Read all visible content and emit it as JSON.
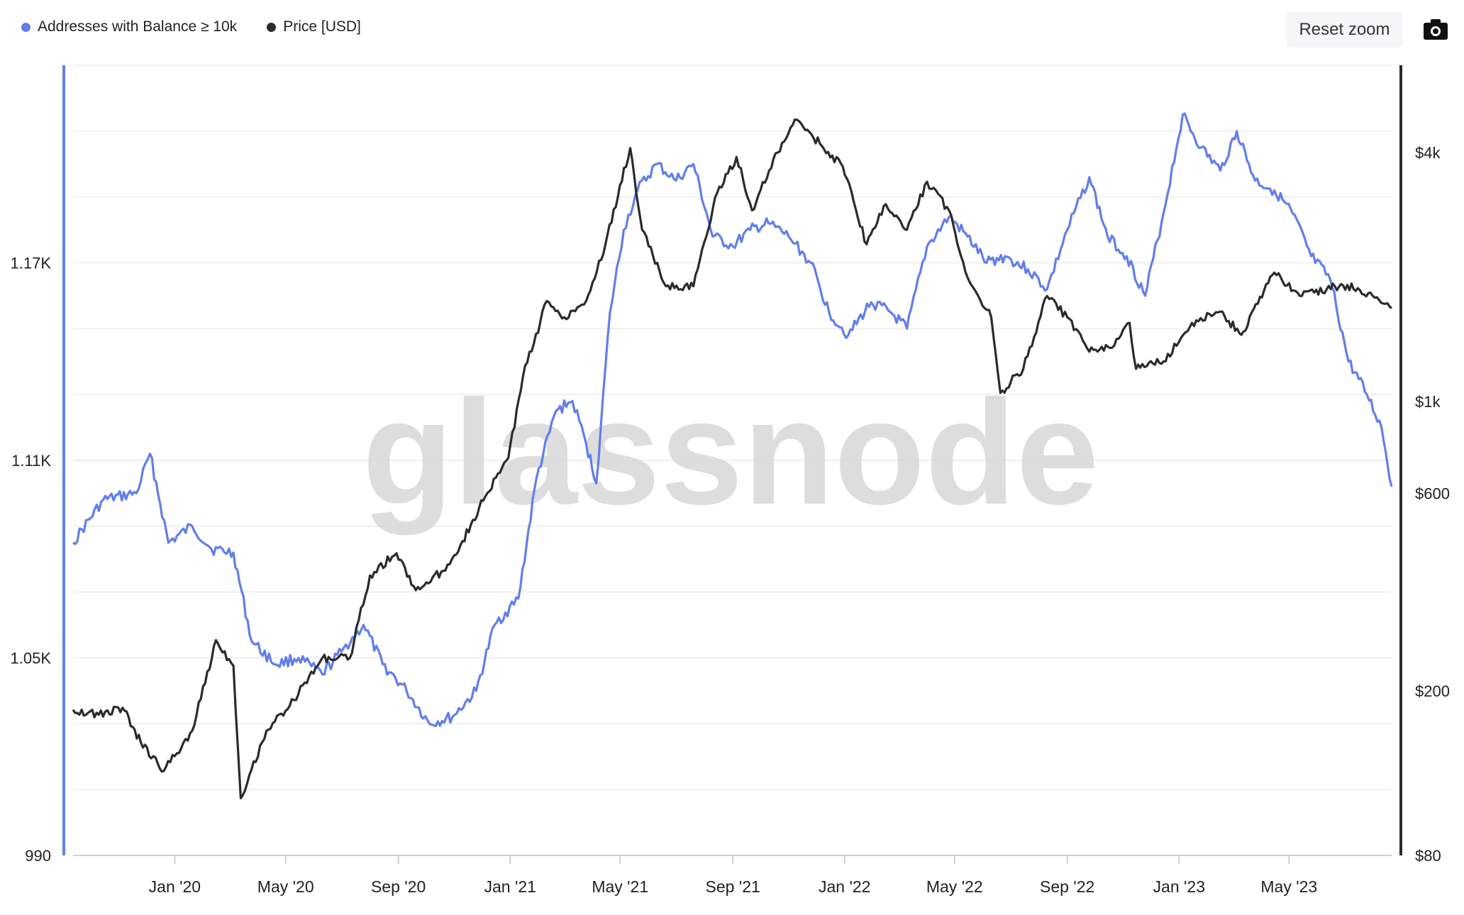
{
  "toolbar": {
    "reset_zoom_label": "Reset zoom",
    "camera_icon": "camera-icon"
  },
  "legend": [
    {
      "label": "Addresses with Balance ≥ 10k",
      "color": "#627eea"
    },
    {
      "label": "Price [USD]",
      "color": "#2b2b2b"
    }
  ],
  "watermark": "glassnode",
  "chart_data": {
    "type": "line",
    "x_ticks": [
      "Jan '20",
      "May '20",
      "Sep '20",
      "Jan '21",
      "May '21",
      "Sep '21",
      "Jan '22",
      "May '22",
      "Sep '22",
      "Jan '23",
      "May '23"
    ],
    "x_tick_dates": [
      "2020-01-01",
      "2020-05-01",
      "2020-09-01",
      "2021-01-01",
      "2021-05-01",
      "2021-09-01",
      "2022-01-01",
      "2022-05-01",
      "2022-09-01",
      "2023-01-01",
      "2023-05-01"
    ],
    "x_range": [
      "2019-09-12",
      "2023-08-21"
    ],
    "y_left": {
      "ticks": [
        "990",
        "1.05K",
        "1.11K",
        "1.17K"
      ],
      "range": [
        990,
        1230
      ]
    },
    "y_right": {
      "ticks": [
        "$80",
        "$200",
        "$600",
        "$1k",
        "$4k"
      ],
      "scale": "log",
      "range": [
        80,
        6500
      ]
    },
    "grid": true,
    "legend_position": "top-left",
    "series": [
      {
        "name": "Addresses with Balance ≥ 10k",
        "axis": "left",
        "color": "#627eea",
        "points": [
          [
            "2019-09-12",
            1085
          ],
          [
            "2019-10-15",
            1098
          ],
          [
            "2019-11-20",
            1100
          ],
          [
            "2019-12-05",
            1112
          ],
          [
            "2019-12-25",
            1085
          ],
          [
            "2020-01-20",
            1090
          ],
          [
            "2020-02-10",
            1083
          ],
          [
            "2020-03-05",
            1082
          ],
          [
            "2020-03-25",
            1055
          ],
          [
            "2020-04-20",
            1048
          ],
          [
            "2020-05-15",
            1050
          ],
          [
            "2020-06-10",
            1045
          ],
          [
            "2020-07-01",
            1052
          ],
          [
            "2020-07-25",
            1060
          ],
          [
            "2020-08-15",
            1048
          ],
          [
            "2020-09-10",
            1040
          ],
          [
            "2020-10-05",
            1030
          ],
          [
            "2020-10-30",
            1032
          ],
          [
            "2020-11-25",
            1040
          ],
          [
            "2020-12-15",
            1060
          ],
          [
            "2021-01-10",
            1068
          ],
          [
            "2021-01-30",
            1105
          ],
          [
            "2021-02-20",
            1125
          ],
          [
            "2021-03-10",
            1128
          ],
          [
            "2021-03-25",
            1115
          ],
          [
            "2021-04-05",
            1103
          ],
          [
            "2021-04-20",
            1155
          ],
          [
            "2021-05-05",
            1180
          ],
          [
            "2021-05-20",
            1192
          ],
          [
            "2021-06-10",
            1200
          ],
          [
            "2021-07-01",
            1195
          ],
          [
            "2021-07-20",
            1200
          ],
          [
            "2021-08-10",
            1178
          ],
          [
            "2021-09-01",
            1175
          ],
          [
            "2021-09-20",
            1180
          ],
          [
            "2021-10-10",
            1182
          ],
          [
            "2021-11-01",
            1178
          ],
          [
            "2021-11-25",
            1170
          ],
          [
            "2021-12-15",
            1155
          ],
          [
            "2022-01-05",
            1148
          ],
          [
            "2022-01-30",
            1158
          ],
          [
            "2022-02-20",
            1155
          ],
          [
            "2022-03-10",
            1150
          ],
          [
            "2022-04-01",
            1175
          ],
          [
            "2022-04-25",
            1184
          ],
          [
            "2022-05-15",
            1178
          ],
          [
            "2022-06-05",
            1170
          ],
          [
            "2022-06-25",
            1172
          ],
          [
            "2022-07-20",
            1168
          ],
          [
            "2022-08-10",
            1162
          ],
          [
            "2022-09-01",
            1180
          ],
          [
            "2022-09-25",
            1196
          ],
          [
            "2022-10-15",
            1178
          ],
          [
            "2022-11-05",
            1172
          ],
          [
            "2022-11-25",
            1160
          ],
          [
            "2022-12-15",
            1185
          ],
          [
            "2023-01-05",
            1215
          ],
          [
            "2023-01-25",
            1205
          ],
          [
            "2023-02-15",
            1198
          ],
          [
            "2023-03-05",
            1210
          ],
          [
            "2023-03-25",
            1195
          ],
          [
            "2023-04-15",
            1192
          ],
          [
            "2023-05-05",
            1185
          ],
          [
            "2023-05-25",
            1172
          ],
          [
            "2023-06-15",
            1165
          ],
          [
            "2023-07-05",
            1140
          ],
          [
            "2023-07-25",
            1130
          ],
          [
            "2023-08-10",
            1120
          ],
          [
            "2023-08-21",
            1102
          ]
        ]
      },
      {
        "name": "Price [USD]",
        "axis": "right",
        "color": "#2b2b2b",
        "points": [
          [
            "2019-09-12",
            180
          ],
          [
            "2019-10-10",
            175
          ],
          [
            "2019-11-05",
            182
          ],
          [
            "2019-11-25",
            150
          ],
          [
            "2019-12-20",
            128
          ],
          [
            "2020-01-20",
            160
          ],
          [
            "2020-02-15",
            265
          ],
          [
            "2020-03-05",
            230
          ],
          [
            "2020-03-13",
            110
          ],
          [
            "2020-04-10",
            160
          ],
          [
            "2020-05-10",
            190
          ],
          [
            "2020-06-10",
            240
          ],
          [
            "2020-07-10",
            240
          ],
          [
            "2020-08-01",
            380
          ],
          [
            "2020-08-30",
            430
          ],
          [
            "2020-09-20",
            350
          ],
          [
            "2020-10-20",
            390
          ],
          [
            "2020-11-10",
            460
          ],
          [
            "2020-12-05",
            590
          ],
          [
            "2020-12-30",
            730
          ],
          [
            "2021-01-15",
            1150
          ],
          [
            "2021-02-10",
            1750
          ],
          [
            "2021-03-01",
            1600
          ],
          [
            "2021-03-25",
            1750
          ],
          [
            "2021-04-15",
            2400
          ],
          [
            "2021-05-12",
            4100
          ],
          [
            "2021-05-25",
            2600
          ],
          [
            "2021-06-20",
            1900
          ],
          [
            "2021-07-20",
            1900
          ],
          [
            "2021-08-15",
            3200
          ],
          [
            "2021-09-05",
            3900
          ],
          [
            "2021-09-22",
            2900
          ],
          [
            "2021-10-20",
            4000
          ],
          [
            "2021-11-10",
            4800
          ],
          [
            "2021-12-05",
            4200
          ],
          [
            "2021-12-30",
            3700
          ],
          [
            "2022-01-25",
            2400
          ],
          [
            "2022-02-15",
            3000
          ],
          [
            "2022-03-10",
            2600
          ],
          [
            "2022-04-01",
            3400
          ],
          [
            "2022-04-25",
            2900
          ],
          [
            "2022-05-15",
            2000
          ],
          [
            "2022-06-10",
            1600
          ],
          [
            "2022-06-20",
            1050
          ],
          [
            "2022-07-15",
            1200
          ],
          [
            "2022-08-10",
            1800
          ],
          [
            "2022-09-01",
            1600
          ],
          [
            "2022-09-25",
            1320
          ],
          [
            "2022-10-20",
            1350
          ],
          [
            "2022-11-08",
            1550
          ],
          [
            "2022-11-15",
            1200
          ],
          [
            "2022-12-15",
            1250
          ],
          [
            "2023-01-15",
            1550
          ],
          [
            "2023-02-15",
            1650
          ],
          [
            "2023-03-10",
            1450
          ],
          [
            "2023-04-15",
            2050
          ],
          [
            "2023-05-15",
            1800
          ],
          [
            "2023-06-20",
            1900
          ],
          [
            "2023-07-15",
            1880
          ],
          [
            "2023-08-21",
            1680
          ]
        ]
      }
    ]
  }
}
